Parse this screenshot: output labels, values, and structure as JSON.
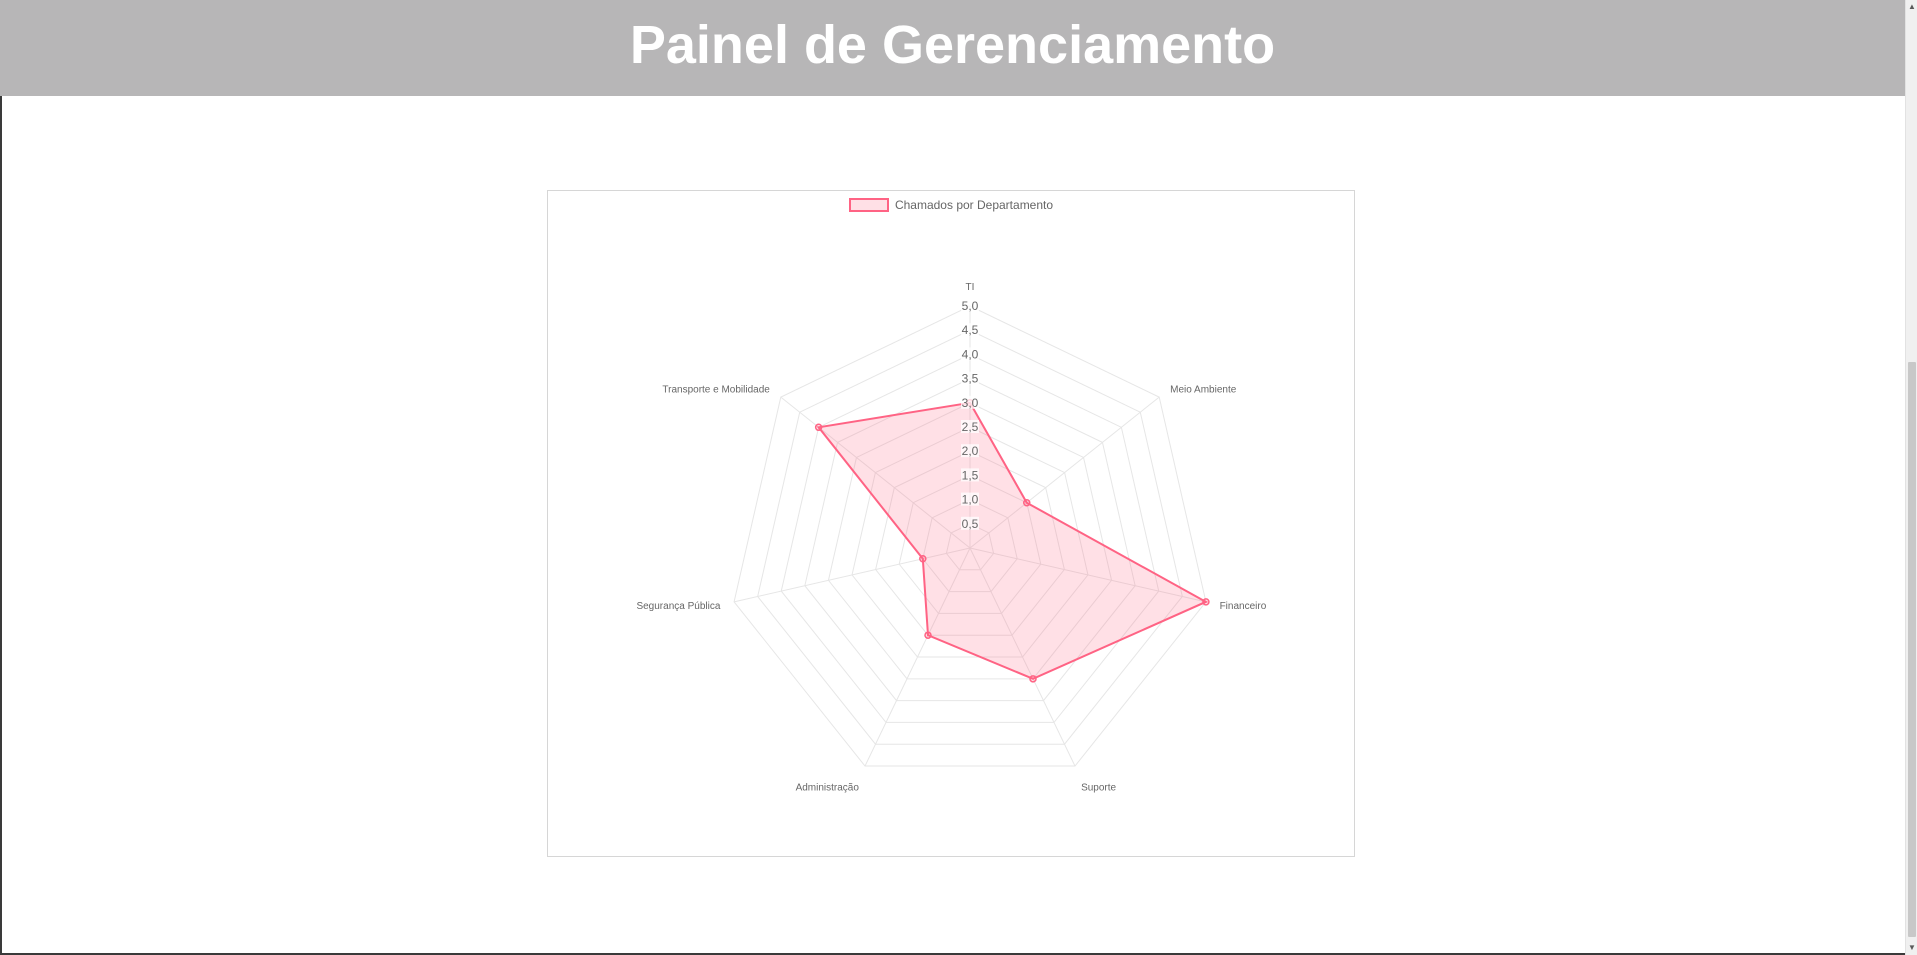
{
  "header": {
    "title": "Painel de Gerenciamento"
  },
  "colors": {
    "header_bg": "#b7b6b7",
    "series_line": "#ff6384",
    "series_fill": "rgba(255,99,132,0.2)",
    "grid": "#e6e6e6"
  },
  "chart_data": {
    "type": "radar",
    "categories": [
      "TI",
      "Meio Ambiente",
      "Financeiro",
      "Suporte",
      "Administração",
      "Segurança Pública",
      "Transporte e Mobilidade"
    ],
    "series": [
      {
        "name": "Chamados por Departamento",
        "values": [
          3,
          1.5,
          5,
          3,
          2,
          1,
          4
        ]
      }
    ],
    "rlim": [
      0,
      5
    ],
    "ticks": [
      "0,5",
      "1,0",
      "1,5",
      "2,0",
      "2,5",
      "3,0",
      "3,5",
      "4,0",
      "4,5",
      "5,0"
    ],
    "legend_position": "top",
    "grid": true
  }
}
